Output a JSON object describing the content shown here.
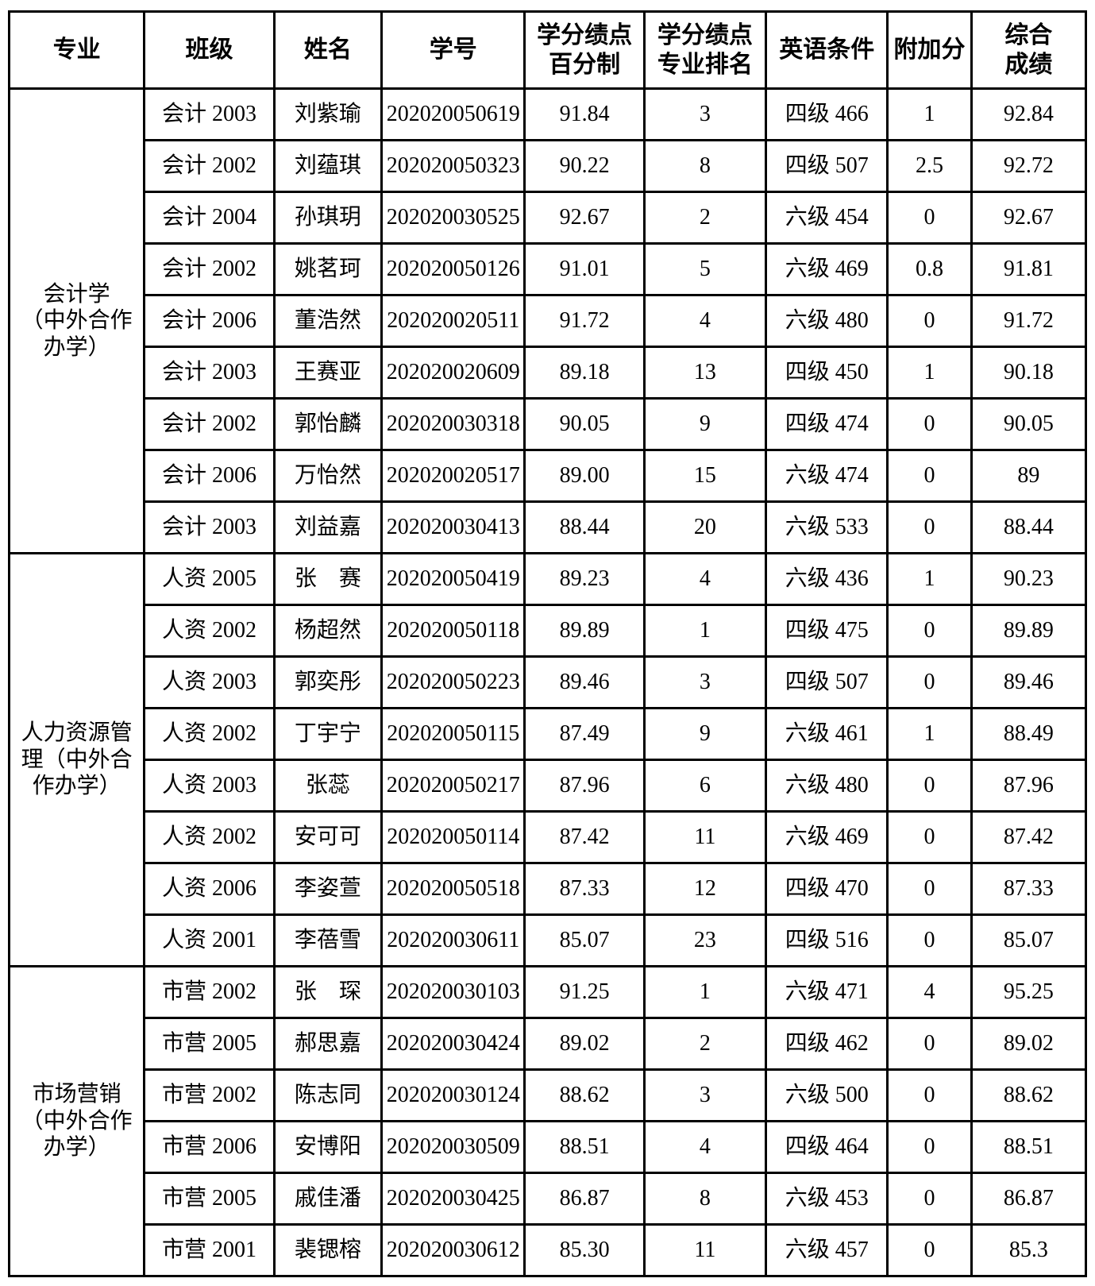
{
  "colors": {
    "background": "#ffffff",
    "border": "#000000",
    "text": "#000000"
  },
  "table": {
    "headers": {
      "major": "专业",
      "class": "班级",
      "name": "姓名",
      "student_id": "学号",
      "gpa_percent": "学分绩点\n百分制",
      "major_rank": "学分绩点\n专业排名",
      "english": "英语条件",
      "bonus": "附加分",
      "total": "综合\n成绩"
    },
    "groups": [
      {
        "major": "会计学\n（中外合作\n办学）",
        "rows": [
          {
            "class": "会计 2003",
            "name": "刘紫瑜",
            "student_id": "202020050619",
            "gpa": "91.84",
            "rank": "3",
            "english": "四级 466",
            "bonus": "1",
            "total": "92.84"
          },
          {
            "class": "会计 2002",
            "name": "刘蕴琪",
            "student_id": "202020050323",
            "gpa": "90.22",
            "rank": "8",
            "english": "四级 507",
            "bonus": "2.5",
            "total": "92.72"
          },
          {
            "class": "会计 2004",
            "name": "孙琪玥",
            "student_id": "202020030525",
            "gpa": "92.67",
            "rank": "2",
            "english": "六级 454",
            "bonus": "0",
            "total": "92.67"
          },
          {
            "class": "会计 2002",
            "name": "姚茗珂",
            "student_id": "202020050126",
            "gpa": "91.01",
            "rank": "5",
            "english": "六级 469",
            "bonus": "0.8",
            "total": "91.81"
          },
          {
            "class": "会计 2006",
            "name": "董浩然",
            "student_id": "202020020511",
            "gpa": "91.72",
            "rank": "4",
            "english": "六级 480",
            "bonus": "0",
            "total": "91.72"
          },
          {
            "class": "会计 2003",
            "name": "王赛亚",
            "student_id": "202020020609",
            "gpa": "89.18",
            "rank": "13",
            "english": "四级 450",
            "bonus": "1",
            "total": "90.18"
          },
          {
            "class": "会计 2002",
            "name": "郭怡麟",
            "student_id": "202020030318",
            "gpa": "90.05",
            "rank": "9",
            "english": "四级 474",
            "bonus": "0",
            "total": "90.05"
          },
          {
            "class": "会计 2006",
            "name": "万怡然",
            "student_id": "202020020517",
            "gpa": "89.00",
            "rank": "15",
            "english": "六级 474",
            "bonus": "0",
            "total": "89"
          },
          {
            "class": "会计 2003",
            "name": "刘益嘉",
            "student_id": "202020030413",
            "gpa": "88.44",
            "rank": "20",
            "english": "六级 533",
            "bonus": "0",
            "total": "88.44"
          }
        ]
      },
      {
        "major": "人力资源管\n理（中外合\n作办学）",
        "rows": [
          {
            "class": "人资 2005",
            "name": "张　赛",
            "student_id": "202020050419",
            "gpa": "89.23",
            "rank": "4",
            "english": "六级 436",
            "bonus": "1",
            "total": "90.23"
          },
          {
            "class": "人资 2002",
            "name": "杨超然",
            "student_id": "202020050118",
            "gpa": "89.89",
            "rank": "1",
            "english": "四级 475",
            "bonus": "0",
            "total": "89.89"
          },
          {
            "class": "人资 2003",
            "name": "郭奕彤",
            "student_id": "202020050223",
            "gpa": "89.46",
            "rank": "3",
            "english": "四级 507",
            "bonus": "0",
            "total": "89.46"
          },
          {
            "class": "人资 2002",
            "name": "丁宇宁",
            "student_id": "202020050115",
            "gpa": "87.49",
            "rank": "9",
            "english": "六级 461",
            "bonus": "1",
            "total": "88.49"
          },
          {
            "class": "人资 2003",
            "name": "张蕊",
            "student_id": "202020050217",
            "gpa": "87.96",
            "rank": "6",
            "english": "六级 480",
            "bonus": "0",
            "total": "87.96"
          },
          {
            "class": "人资 2002",
            "name": "安可可",
            "student_id": "202020050114",
            "gpa": "87.42",
            "rank": "11",
            "english": "六级 469",
            "bonus": "0",
            "total": "87.42"
          },
          {
            "class": "人资 2006",
            "name": "李姿萱",
            "student_id": "202020050518",
            "gpa": "87.33",
            "rank": "12",
            "english": "四级 470",
            "bonus": "0",
            "total": "87.33"
          },
          {
            "class": "人资 2001",
            "name": "李蓓雪",
            "student_id": "202020030611",
            "gpa": "85.07",
            "rank": "23",
            "english": "四级 516",
            "bonus": "0",
            "total": "85.07"
          }
        ]
      },
      {
        "major": "市场营销\n（中外合作\n办学）",
        "rows": [
          {
            "class": "市营 2002",
            "name": "张　琛",
            "student_id": "202020030103",
            "gpa": "91.25",
            "rank": "1",
            "english": "六级 471",
            "bonus": "4",
            "total": "95.25"
          },
          {
            "class": "市营 2005",
            "name": "郝思嘉",
            "student_id": "202020030424",
            "gpa": "89.02",
            "rank": "2",
            "english": "四级 462",
            "bonus": "0",
            "total": "89.02"
          },
          {
            "class": "市营 2002",
            "name": "陈志同",
            "student_id": "202020030124",
            "gpa": "88.62",
            "rank": "3",
            "english": "六级 500",
            "bonus": "0",
            "total": "88.62"
          },
          {
            "class": "市营 2006",
            "name": "安博阳",
            "student_id": "202020030509",
            "gpa": "88.51",
            "rank": "4",
            "english": "四级 464",
            "bonus": "0",
            "total": "88.51"
          },
          {
            "class": "市营 2005",
            "name": "戚佳潘",
            "student_id": "202020030425",
            "gpa": "86.87",
            "rank": "8",
            "english": "六级 453",
            "bonus": "0",
            "total": "86.87"
          },
          {
            "class": "市营 2001",
            "name": "裴锶榕",
            "student_id": "202020030612",
            "gpa": "85.30",
            "rank": "11",
            "english": "六级 457",
            "bonus": "0",
            "total": "85.3"
          }
        ]
      }
    ]
  }
}
